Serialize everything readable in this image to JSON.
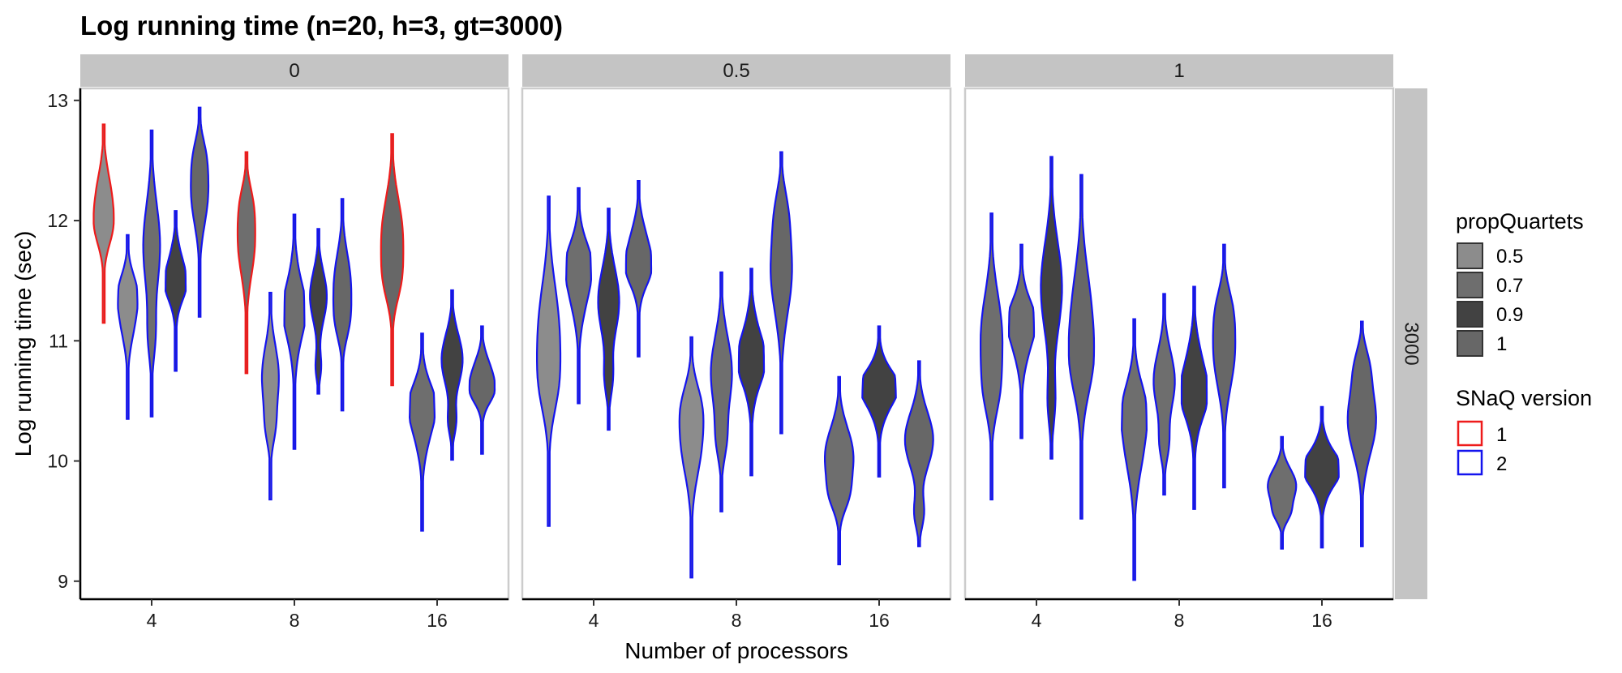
{
  "chart_data": {
    "type": "violin",
    "title": "Log running time (n=20, h=3, gt=3000)",
    "xlabel": "Number of processors",
    "ylabel": "Log running time (sec)",
    "categories": [
      "4",
      "8",
      "16"
    ],
    "ylim": [
      8.85,
      13.1
    ],
    "yticks": [
      9,
      10,
      11,
      12,
      13
    ],
    "facet_cols": [
      "0",
      "0.5",
      "1"
    ],
    "facet_row": "3000",
    "legend": {
      "fill_title": "propQuartets",
      "fill_entries": [
        {
          "label": "0.5",
          "color": "#8c8c8c"
        },
        {
          "label": "0.7",
          "color": "#6e6e6e"
        },
        {
          "label": "0.9",
          "color": "#424242"
        },
        {
          "label": "1",
          "color": "#676767"
        }
      ],
      "color_title": "SNaQ version",
      "color_entries": [
        {
          "label": "1",
          "color": "#ee1b1b"
        },
        {
          "label": "2",
          "color": "#1414ee"
        }
      ]
    },
    "panels": [
      {
        "facet": "0",
        "violins": [
          {
            "processors": "4",
            "propQuartets": "0.5",
            "version": "1",
            "min": 11.15,
            "max": 12.8
          },
          {
            "processors": "4",
            "propQuartets": "0.5",
            "version": "2",
            "min": 10.35,
            "max": 11.88
          },
          {
            "processors": "4",
            "propQuartets": "0.7",
            "version": "2",
            "min": 10.37,
            "max": 12.75
          },
          {
            "processors": "4",
            "propQuartets": "0.9",
            "version": "2",
            "min": 10.75,
            "max": 12.08
          },
          {
            "processors": "4",
            "propQuartets": "1",
            "version": "2",
            "min": 11.2,
            "max": 12.94
          },
          {
            "processors": "8",
            "propQuartets": "0.7",
            "version": "1",
            "min": 10.73,
            "max": 12.57
          },
          {
            "processors": "8",
            "propQuartets": "0.5",
            "version": "2",
            "min": 9.68,
            "max": 11.4
          },
          {
            "processors": "8",
            "propQuartets": "0.7",
            "version": "2",
            "min": 10.1,
            "max": 12.05
          },
          {
            "processors": "8",
            "propQuartets": "0.9",
            "version": "2",
            "min": 10.56,
            "max": 11.93
          },
          {
            "processors": "8",
            "propQuartets": "1",
            "version": "2",
            "min": 10.42,
            "max": 12.18
          },
          {
            "processors": "16",
            "propQuartets": "1",
            "version": "1",
            "min": 10.63,
            "max": 12.72
          },
          {
            "processors": "16",
            "propQuartets": "0.7",
            "version": "2",
            "min": 9.42,
            "max": 11.06
          },
          {
            "processors": "16",
            "propQuartets": "0.9",
            "version": "2",
            "min": 10.01,
            "max": 11.42
          },
          {
            "processors": "16",
            "propQuartets": "1",
            "version": "2",
            "min": 10.06,
            "max": 11.12
          }
        ]
      },
      {
        "facet": "0.5",
        "violins": [
          {
            "processors": "4",
            "propQuartets": "0.5",
            "version": "2",
            "min": 9.46,
            "max": 12.2
          },
          {
            "processors": "4",
            "propQuartets": "0.7",
            "version": "2",
            "min": 10.48,
            "max": 12.27
          },
          {
            "processors": "4",
            "propQuartets": "0.9",
            "version": "2",
            "min": 10.26,
            "max": 12.1
          },
          {
            "processors": "4",
            "propQuartets": "1",
            "version": "2",
            "min": 10.87,
            "max": 12.33
          },
          {
            "processors": "8",
            "propQuartets": "0.5",
            "version": "2",
            "min": 9.03,
            "max": 11.03
          },
          {
            "processors": "8",
            "propQuartets": "0.7",
            "version": "2",
            "min": 9.58,
            "max": 11.57
          },
          {
            "processors": "8",
            "propQuartets": "0.9",
            "version": "2",
            "min": 9.88,
            "max": 11.6
          },
          {
            "processors": "8",
            "propQuartets": "1",
            "version": "2",
            "min": 10.23,
            "max": 12.57
          },
          {
            "processors": "16",
            "propQuartets": "0.7",
            "version": "2",
            "min": 9.14,
            "max": 10.7
          },
          {
            "processors": "16",
            "propQuartets": "0.9",
            "version": "2",
            "min": 9.87,
            "max": 11.12
          },
          {
            "processors": "16",
            "propQuartets": "1",
            "version": "2",
            "min": 9.29,
            "max": 10.83
          }
        ]
      },
      {
        "facet": "1",
        "violins": [
          {
            "processors": "4",
            "propQuartets": "0.7",
            "version": "2",
            "min": 9.68,
            "max": 12.06
          },
          {
            "processors": "4",
            "propQuartets": "0.7",
            "version": "2",
            "min": 10.19,
            "max": 11.8
          },
          {
            "processors": "4",
            "propQuartets": "0.9",
            "version": "2",
            "min": 10.02,
            "max": 12.53
          },
          {
            "processors": "4",
            "propQuartets": "1",
            "version": "2",
            "min": 9.52,
            "max": 12.38
          },
          {
            "processors": "8",
            "propQuartets": "0.7",
            "version": "2",
            "min": 9.01,
            "max": 11.18
          },
          {
            "processors": "8",
            "propQuartets": "0.7",
            "version": "2",
            "min": 9.72,
            "max": 11.39
          },
          {
            "processors": "8",
            "propQuartets": "0.9",
            "version": "2",
            "min": 9.6,
            "max": 11.45
          },
          {
            "processors": "8",
            "propQuartets": "1",
            "version": "2",
            "min": 9.78,
            "max": 11.8
          },
          {
            "processors": "16",
            "propQuartets": "0.7",
            "version": "2",
            "min": 9.27,
            "max": 10.2
          },
          {
            "processors": "16",
            "propQuartets": "0.9",
            "version": "2",
            "min": 9.28,
            "max": 10.45
          },
          {
            "processors": "16",
            "propQuartets": "1",
            "version": "2",
            "min": 9.29,
            "max": 11.16
          }
        ]
      }
    ]
  }
}
